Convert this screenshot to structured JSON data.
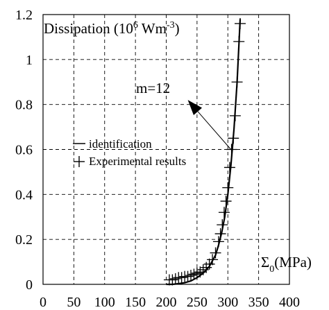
{
  "chart_data": {
    "type": "line",
    "title": "",
    "ylabel_main": "Dissipation (10",
    "ylabel_exp1": "6",
    "ylabel_mid": " Wm",
    "ylabel_exp2": "-3",
    "ylabel_end": ")",
    "xlabel_main": "Σ",
    "xlabel_sub": "0",
    "xlabel_end": "(MPa)",
    "xlim": [
      0,
      400
    ],
    "ylim": [
      0,
      1.2
    ],
    "x_ticks": [
      "0",
      "50",
      "100",
      "150",
      "200",
      "250",
      "300",
      "350",
      "400"
    ],
    "y_ticks": [
      "0",
      "0.2",
      "0.4",
      "0.6",
      "0.8",
      "1",
      "1.2"
    ],
    "grid": true,
    "legend": [
      "identification",
      "Experimental results"
    ],
    "annotation": {
      "text": "m=12",
      "x": 200,
      "y": 0.9,
      "arrow_from": [
        305,
        0.6
      ],
      "arrow_to": [
        235,
        0.82
      ]
    },
    "series": [
      {
        "name": "identification",
        "style": "line",
        "x": [
          200,
          210,
          220,
          230,
          240,
          250,
          260,
          270,
          280,
          285,
          290,
          295,
          300,
          305,
          310,
          315,
          320
        ],
        "y": [
          0.0,
          0.0,
          0.003,
          0.007,
          0.015,
          0.03,
          0.05,
          0.08,
          0.13,
          0.175,
          0.23,
          0.3,
          0.4,
          0.53,
          0.69,
          0.9,
          1.18
        ]
      },
      {
        "name": "Experimental results",
        "style": "plus",
        "x": [
          205,
          210,
          215,
          220,
          225,
          230,
          235,
          240,
          245,
          250,
          255,
          260,
          265,
          270,
          275,
          280,
          285,
          288,
          291,
          294,
          297,
          300,
          303,
          306,
          309,
          312,
          315,
          318,
          320
        ],
        "y": [
          0.02,
          0.02,
          0.025,
          0.03,
          0.03,
          0.035,
          0.035,
          0.04,
          0.045,
          0.05,
          0.055,
          0.065,
          0.075,
          0.09,
          0.11,
          0.14,
          0.19,
          0.225,
          0.265,
          0.32,
          0.37,
          0.43,
          0.52,
          0.6,
          0.65,
          0.75,
          0.9,
          1.08,
          1.16
        ]
      }
    ]
  }
}
